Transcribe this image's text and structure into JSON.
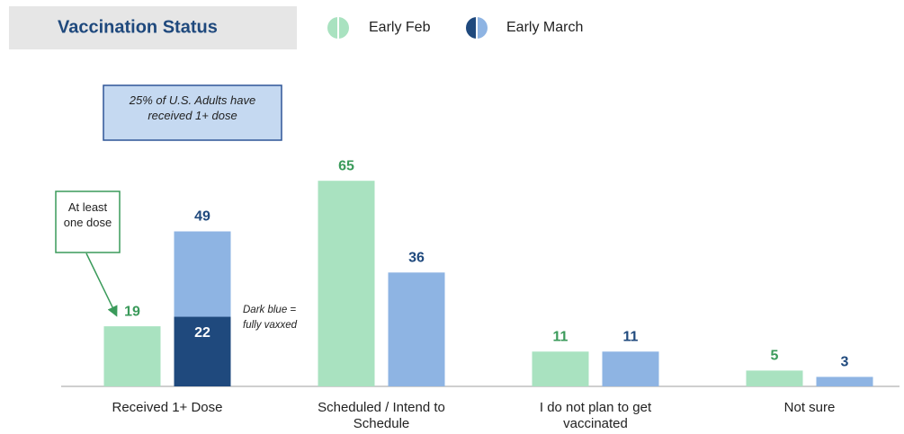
{
  "chart_data": {
    "type": "bar",
    "title": "Vaccination Status",
    "categories": [
      "Received 1+ Dose",
      "Scheduled / Intend to Schedule",
      "I do not plan to get vaccinated",
      "Not sure"
    ],
    "series": [
      {
        "name": "Early Feb",
        "color": "#a9e2c0",
        "label_color": "#3a9a5a",
        "values": [
          19,
          65,
          11,
          5
        ]
      },
      {
        "name": "Early March",
        "color": "#8eb4e3",
        "label_color": "#1f497d",
        "values": [
          49,
          36,
          11,
          3
        ]
      }
    ],
    "fully_vaxxed": {
      "color": "#1f497d",
      "values": [
        22,
        null,
        null,
        null
      ]
    },
    "annotations": {
      "note": "25% of U.S. Adults have received 1+ dose",
      "callout": "At least one dose",
      "key": "Dark blue = fully vaxxed"
    }
  }
}
